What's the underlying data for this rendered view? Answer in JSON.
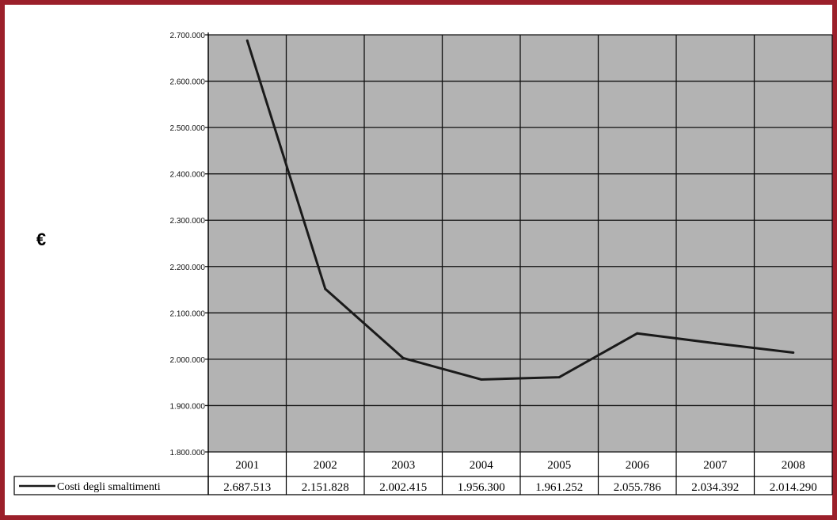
{
  "chart_data": {
    "type": "line",
    "ylabel": "€",
    "title": "",
    "xlabel": "",
    "ylim": [
      1800000,
      2700000
    ],
    "yticks": [
      1800000,
      1900000,
      2000000,
      2100000,
      2200000,
      2300000,
      2400000,
      2500000,
      2600000,
      2700000
    ],
    "ytick_labels": [
      "1.800.000",
      "1.900.000",
      "2.000.000",
      "2.100.000",
      "2.200.000",
      "2.300.000",
      "2.400.000",
      "2.500.000",
      "2.600.000",
      "2.700.000"
    ],
    "categories": [
      "2001",
      "2002",
      "2003",
      "2004",
      "2005",
      "2006",
      "2007",
      "2008"
    ],
    "grid": true,
    "legend": "data-table-left",
    "series": [
      {
        "name": "Costi degli smaltimenti",
        "values": [
          2687513,
          2151828,
          2002415,
          1956300,
          1961252,
          2055786,
          2034392,
          2014290
        ],
        "value_labels": [
          "2.687.513",
          "2.151.828",
          "2.002.415",
          "1.956.300",
          "1.961.252",
          "2.055.786",
          "2.034.392",
          "2.014.290"
        ],
        "color": "#1a1a1a"
      }
    ],
    "plot_background": "#b3b3b3",
    "frame_color": "#9b1f2a"
  }
}
